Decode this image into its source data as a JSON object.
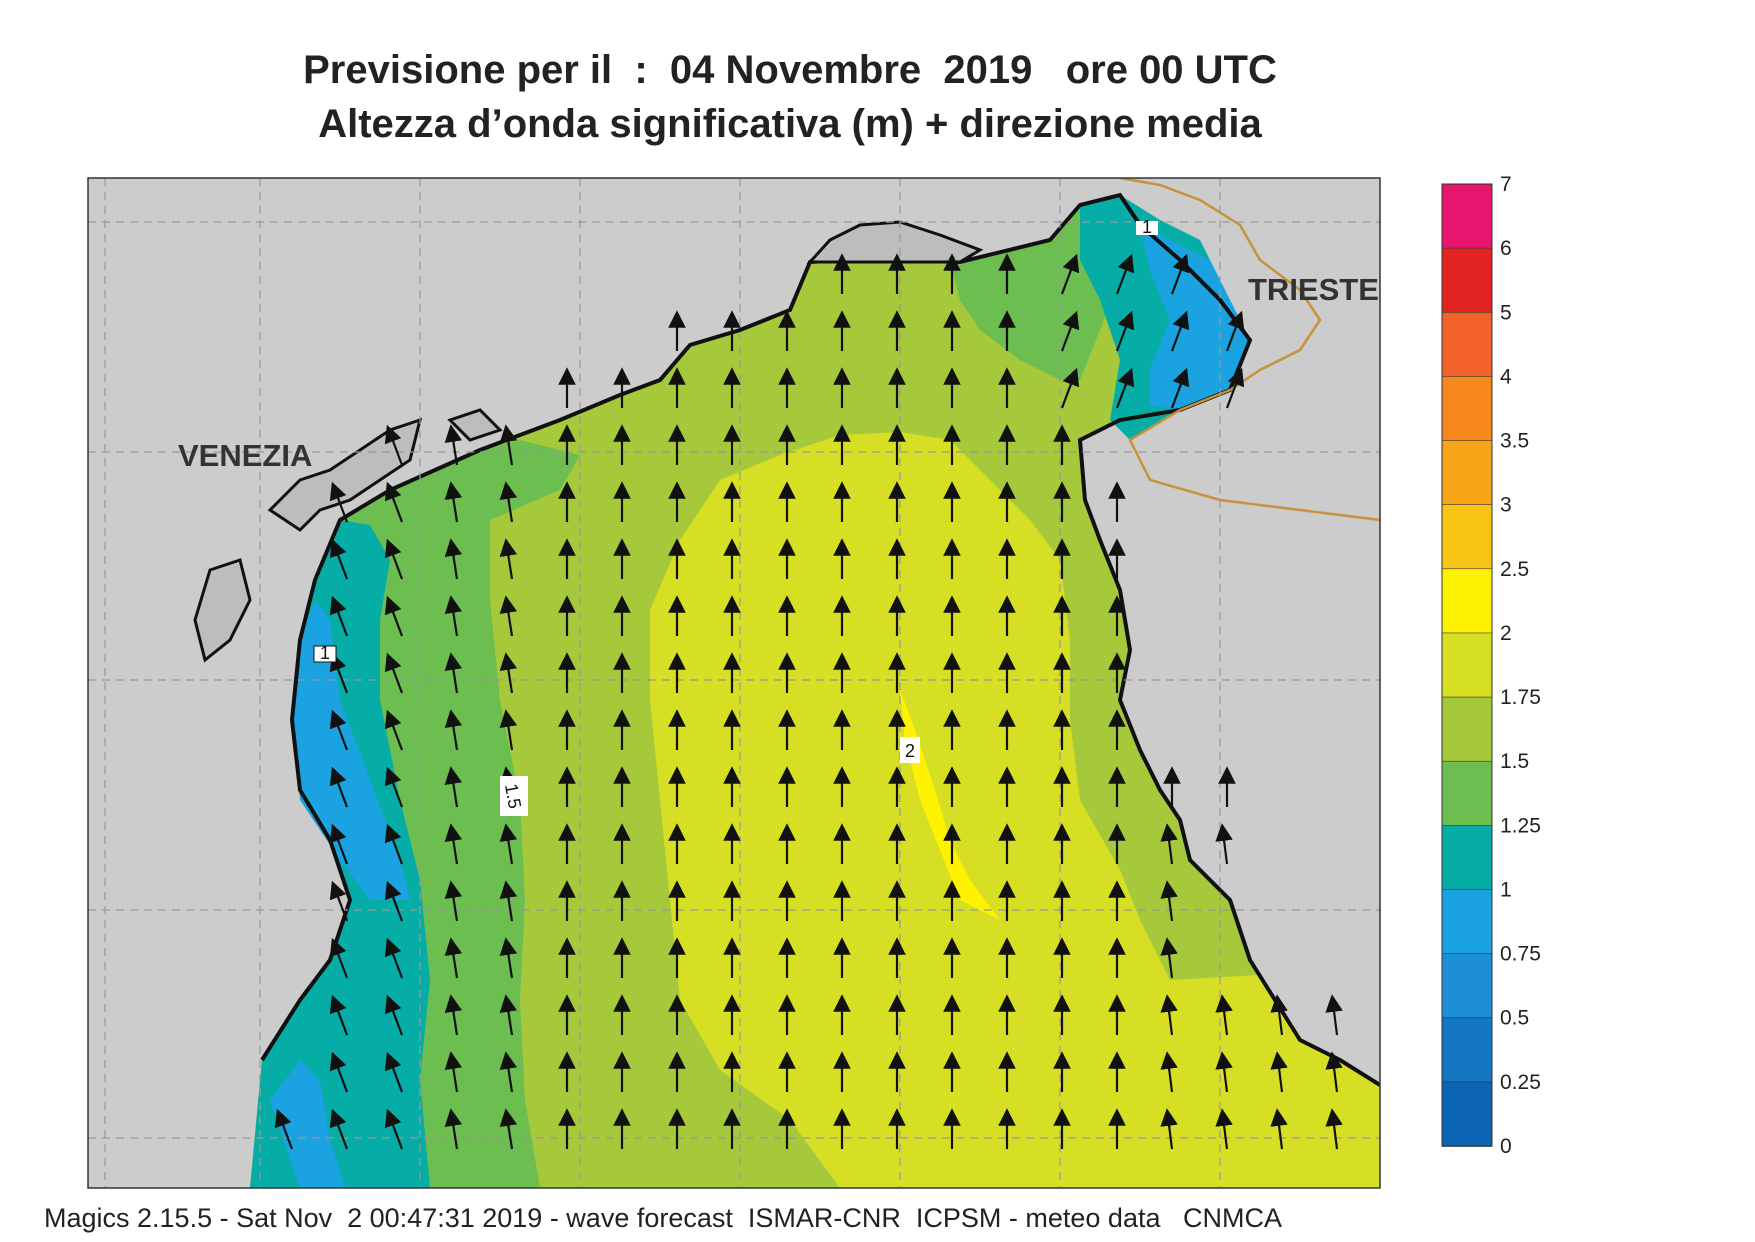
{
  "title": {
    "line1": "Previsione per il  :  04 Novembre  2019   ore 00 UTC",
    "line2": "Altezza d’onda significativa (m) + direzione media"
  },
  "map": {
    "cities": [
      "VENEZIA",
      "TRIESTE"
    ],
    "contour_labels": [
      "1",
      "1.5",
      "2",
      "1"
    ],
    "wave_direction": "north",
    "colors": {
      "land": "#cccccc",
      "coast": "#111111",
      "border": "#c8923a",
      "grid": "#999999"
    }
  },
  "legend": {
    "labels": [
      "7",
      "6",
      "5",
      "4",
      "3.5",
      "3",
      "2.5",
      "2",
      "1.75",
      "1.5",
      "1.25",
      "1",
      "0.75",
      "0.5",
      "0.25",
      "0"
    ],
    "colors": [
      "#e6156e",
      "#e32222",
      "#f2622a",
      "#f6881e",
      "#f8a51a",
      "#fac615",
      "#fff200",
      "#d6df23",
      "#a6c93c",
      "#6bbe4f",
      "#06ada6",
      "#1ba2e0",
      "#1d8fd6",
      "#1477c4",
      "#0c65b3"
    ]
  },
  "footer": "Magics 2.15.5 - Sat Nov  2 00:47:31 2019 - wave forecast  ISMAR-CNR  ICPSM - meteo data   CNMCA"
}
